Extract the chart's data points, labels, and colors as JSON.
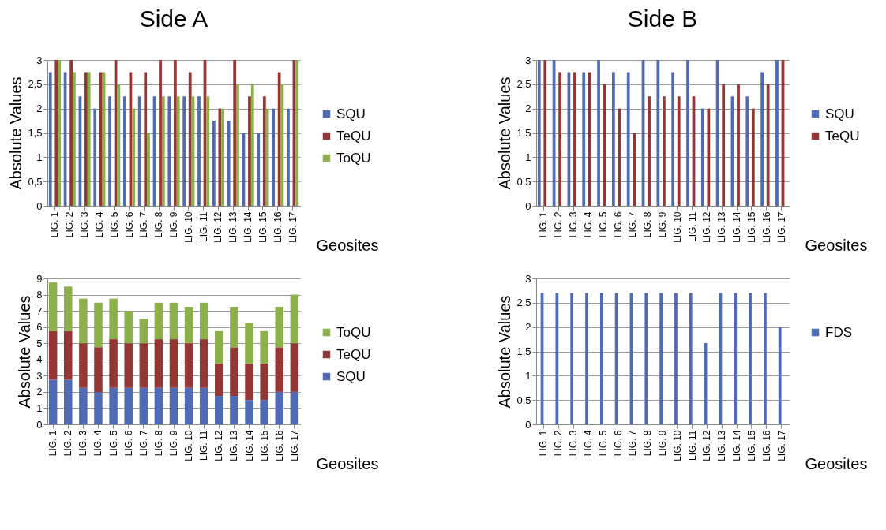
{
  "chart_data": [
    {
      "type": "bar",
      "title": "Side A",
      "xlabel": "Geosites",
      "ylabel": "Absolute Values",
      "categories": [
        "LIG. 1",
        "LIG. 2",
        "LIG. 3",
        "LIG. 4",
        "LIG. 5",
        "LIG. 6",
        "LIG. 7",
        "LIG. 8",
        "LIG. 9",
        "LIG. 10",
        "LIG. 11",
        "LIG. 12",
        "LIG. 13",
        "LIG. 14",
        "LIG. 15",
        "LIG. 16",
        "LIG. 17"
      ],
      "series": [
        {
          "name": "SQU",
          "color": "#4f6bb5",
          "values": [
            2.75,
            2.75,
            2.25,
            2,
            2.25,
            2.25,
            2.25,
            2.25,
            2.25,
            2.25,
            2.25,
            1.75,
            1.75,
            1.5,
            1.5,
            2,
            2
          ]
        },
        {
          "name": "TeQU",
          "color": "#943634",
          "values": [
            3,
            3,
            2.75,
            2.75,
            3,
            2.75,
            2.75,
            3,
            3,
            2.75,
            3,
            2,
            3,
            2.25,
            2.25,
            2.75,
            3
          ]
        },
        {
          "name": "ToQU",
          "color": "#8cb04a",
          "values": [
            3,
            2.75,
            2.75,
            2.75,
            2.5,
            2,
            1.5,
            2.25,
            2.25,
            2.25,
            2.25,
            2,
            2.5,
            2.5,
            2,
            2.5,
            3
          ]
        }
      ],
      "ylim": [
        0,
        3
      ],
      "yticks": [
        0,
        {
          "value": 0.5,
          "label": "0,5"
        },
        1,
        {
          "value": 1.5,
          "label": "1,5"
        },
        2,
        {
          "value": 2.5,
          "label": "2,5"
        },
        3
      ],
      "grid": "y",
      "legend": "right"
    },
    {
      "type": "bar",
      "title": "Side B",
      "xlabel": "Geosites",
      "ylabel": "Absolute Values",
      "categories": [
        "LIG. 1",
        "LIG. 2",
        "LIG. 3",
        "LIG. 4",
        "LIG. 5",
        "LIG. 6",
        "LIG. 7",
        "LIG. 8",
        "LIG. 9",
        "LIG. 10",
        "LIG. 11",
        "LIG. 12",
        "LIG. 13",
        "LIG. 14",
        "LIG. 15",
        "LIG. 16",
        "LIG. 17"
      ],
      "series": [
        {
          "name": "SQU",
          "color": "#4f6bb5",
          "values": [
            3,
            3,
            2.75,
            2.75,
            3,
            2.75,
            2.75,
            3,
            3,
            2.75,
            3,
            2,
            3,
            2.25,
            2.25,
            2.75,
            3
          ]
        },
        {
          "name": "TeQU",
          "color": "#943634",
          "values": [
            3,
            2.75,
            2.75,
            2.75,
            2.5,
            2,
            1.5,
            2.25,
            2.25,
            2.25,
            2.25,
            2,
            2.5,
            2.5,
            2,
            2.5,
            3
          ]
        }
      ],
      "ylim": [
        0,
        3
      ],
      "yticks": [
        0,
        {
          "value": 0.5,
          "label": "0,5"
        },
        1,
        {
          "value": 1.5,
          "label": "1,5"
        },
        2,
        {
          "value": 2.5,
          "label": "2,5"
        },
        3
      ],
      "grid": "y",
      "legend": "right"
    },
    {
      "type": "bar",
      "stacked": true,
      "xlabel": "Geosites",
      "ylabel": "Absolute Values",
      "categories": [
        "LIG. 1",
        "LIG. 2",
        "LIG. 3",
        "LIG. 4",
        "LIG. 5",
        "LIG. 6",
        "LIG. 7",
        "LIG. 8",
        "LIG. 9",
        "LIG. 10",
        "LIG. 11",
        "LIG. 12",
        "LIG. 13",
        "LIG. 14",
        "LIG. 15",
        "LIG. 16",
        "LIG. 17"
      ],
      "series": [
        {
          "name": "SQU",
          "color": "#4f6bb5",
          "values": [
            2.75,
            2.75,
            2.25,
            2,
            2.25,
            2.25,
            2.25,
            2.25,
            2.25,
            2.25,
            2.25,
            1.75,
            1.75,
            1.5,
            1.5,
            2,
            2
          ]
        },
        {
          "name": "TeQU",
          "color": "#943634",
          "values": [
            3,
            3,
            2.75,
            2.75,
            3,
            2.75,
            2.75,
            3,
            3,
            2.75,
            3,
            2,
            3,
            2.25,
            2.25,
            2.75,
            3
          ]
        },
        {
          "name": "ToQU",
          "color": "#8cb04a",
          "values": [
            3,
            2.75,
            2.75,
            2.75,
            2.5,
            2,
            1.5,
            2.25,
            2.25,
            2.25,
            2.25,
            2,
            2.5,
            2.5,
            2,
            2.5,
            3
          ]
        }
      ],
      "ylim": [
        0,
        9
      ],
      "yticks": [
        0,
        1,
        2,
        3,
        4,
        5,
        6,
        7,
        8,
        9
      ],
      "grid": "y",
      "legend": "right"
    },
    {
      "type": "bar",
      "xlabel": "Geosites",
      "ylabel": "Absolute Values",
      "categories": [
        "LIG. 1",
        "LIG. 2",
        "LIG. 3",
        "LIG. 4",
        "LIG. 5",
        "LIG. 6",
        "LIG. 7",
        "LIG. 8",
        "LIG. 9",
        "LIG. 10",
        "LIG. 11",
        "LIG. 12",
        "LIG. 13",
        "LIG. 14",
        "LIG. 15",
        "LIG. 16",
        "LIG. 17"
      ],
      "series": [
        {
          "name": "FDS",
          "color": "#4f6bb5",
          "values": [
            2.7,
            2.7,
            2.7,
            2.7,
            2.7,
            2.7,
            2.7,
            2.7,
            2.7,
            2.7,
            2.7,
            1.67,
            2.7,
            2.7,
            2.7,
            2.7,
            2
          ]
        }
      ],
      "ylim": [
        0,
        3
      ],
      "yticks": [
        0,
        {
          "value": 0.5,
          "label": "0,5"
        },
        1,
        {
          "value": 1.5,
          "label": "1,5"
        },
        2,
        {
          "value": 2.5,
          "label": "2,5"
        },
        3
      ],
      "grid": "y",
      "legend": "right"
    }
  ]
}
